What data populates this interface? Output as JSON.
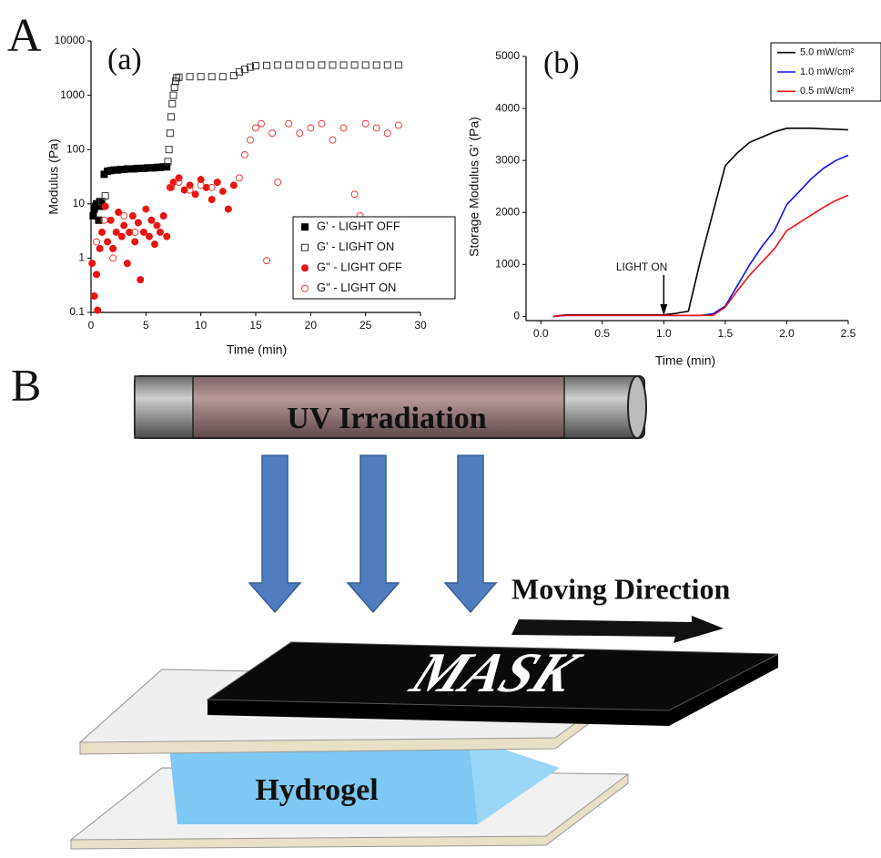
{
  "chart_data": [
    {
      "type": "scatter",
      "title": "(a)",
      "x_label": "Time (min)",
      "y_label": "Modulus (Pa)",
      "xlim": [
        0,
        30
      ],
      "xticks": [
        0,
        5,
        10,
        15,
        20,
        25,
        30
      ],
      "ylim": [
        0.1,
        10000
      ],
      "yticks": [
        0.1,
        1,
        10,
        100,
        1000,
        10000
      ],
      "yscale": "log",
      "legend": "lower right",
      "series": [
        {
          "name": "G' - LIGHT OFF",
          "color": "#000000",
          "marker": "square",
          "filled": true,
          "x": [
            0.2,
            0.3,
            0.4,
            0.5,
            0.6,
            0.7,
            0.8,
            0.9,
            1.0,
            1.2,
            1.5,
            1.8,
            2.1,
            2.4,
            2.7,
            3.0,
            3.3,
            3.6,
            3.9,
            4.2,
            4.5,
            4.8,
            5.1,
            5.4,
            5.7,
            6.0,
            6.3,
            6.6,
            6.9
          ],
          "values": [
            6,
            8,
            9,
            10,
            9,
            5,
            11,
            10,
            9,
            35,
            40,
            41,
            42,
            42,
            43,
            43,
            44,
            44,
            44,
            45,
            45,
            45,
            46,
            46,
            46,
            47,
            47,
            48,
            48
          ]
        },
        {
          "name": "G' - LIGHT ON",
          "color": "#333333",
          "marker": "square",
          "filled": false,
          "x": [
            1.0,
            1.3,
            7.0,
            7.1,
            7.2,
            7.3,
            7.4,
            7.5,
            7.6,
            7.7,
            7.8,
            8,
            9,
            10,
            11,
            12,
            13,
            13.5,
            14,
            14.5,
            15,
            16,
            17,
            18,
            19,
            20,
            21,
            22,
            23,
            24,
            25,
            26,
            27,
            28
          ],
          "values": [
            11,
            14,
            60,
            100,
            200,
            400,
            700,
            1000,
            1400,
            1800,
            2100,
            2150,
            2200,
            2200,
            2200,
            2200,
            2300,
            2700,
            3000,
            3300,
            3500,
            3550,
            3600,
            3600,
            3600,
            3600,
            3600,
            3600,
            3600,
            3600,
            3600,
            3600,
            3600,
            3600
          ]
        },
        {
          "name": "G\" - LIGHT OFF",
          "color": "#e8130f",
          "marker": "circle",
          "filled": true,
          "x": [
            0.1,
            0.3,
            0.5,
            0.6,
            0.8,
            1.0,
            1.3,
            1.5,
            1.8,
            2.0,
            2.3,
            2.5,
            2.8,
            3.0,
            3.3,
            3.5,
            3.8,
            4.0,
            4.3,
            4.5,
            4.8,
            5.0,
            5.3,
            5.5,
            5.8,
            6.0,
            6.3,
            6.6,
            6.9,
            7.2,
            7.5,
            8.0,
            8.5,
            9.0,
            9.5,
            10.0,
            10.5,
            11.0,
            11.5,
            12.0,
            12.5,
            13.0
          ],
          "values": [
            0.8,
            0.2,
            0.5,
            0.11,
            1.5,
            3,
            9,
            2,
            5,
            1.5,
            3,
            7,
            2.5,
            4,
            0.8,
            3,
            6,
            2,
            4.5,
            0.4,
            3,
            8,
            2.5,
            5,
            1.8,
            4,
            3,
            6,
            2.5,
            20,
            25,
            30,
            18,
            22,
            15,
            28,
            20,
            12,
            25,
            17,
            8,
            22
          ]
        },
        {
          "name": "G\" - LIGHT ON",
          "color": "#e8403c",
          "marker": "circle",
          "filled": false,
          "x": [
            0.5,
            1.2,
            2,
            3,
            4,
            5,
            6,
            7.3,
            8,
            9,
            10,
            11,
            12,
            13.5,
            14,
            14.5,
            15,
            15.5,
            16,
            16.5,
            17,
            18,
            19,
            20,
            21,
            22,
            23,
            24,
            24.5,
            25,
            26,
            27,
            28
          ],
          "values": [
            2,
            5,
            1,
            6,
            3,
            8,
            4,
            20,
            25,
            18,
            22,
            20,
            17,
            30,
            80,
            150,
            250,
            300,
            0.9,
            200,
            25,
            300,
            200,
            250,
            300,
            150,
            250,
            15,
            6,
            300,
            250,
            200,
            280
          ]
        }
      ]
    },
    {
      "type": "line",
      "title": "(b)",
      "x_label": "Time (min)",
      "y_label": "Storage Modulus G' (Pa)",
      "xlim": [
        -0.12,
        2.5
      ],
      "xticks": [
        {
          "value": 0,
          "label": "0.0"
        },
        0.5,
        {
          "value": 1,
          "label": "1.0"
        },
        1.5,
        {
          "value": 2,
          "label": "2.0"
        },
        2.5
      ],
      "ylim": [
        -80,
        5000
      ],
      "yticks": [
        0,
        1000,
        2000,
        3000,
        4000,
        5000
      ],
      "legend": "upper right",
      "annotation": {
        "text": "LIGHT ON",
        "x": 1.0
      },
      "x": [
        0.1,
        0.2,
        0.3,
        0.4,
        0.5,
        0.6,
        0.7,
        0.8,
        0.9,
        1.0,
        1.1,
        1.2,
        1.3,
        1.4,
        1.5,
        1.6,
        1.7,
        1.8,
        1.9,
        2.0,
        2.1,
        2.2,
        2.3,
        2.4,
        2.5
      ],
      "series": [
        {
          "name": "5.0 mW/cm²",
          "color": "#000000",
          "values": [
            0,
            30,
            30,
            30,
            30,
            30,
            30,
            30,
            30,
            30,
            60,
            100,
            1100,
            2000,
            2900,
            3150,
            3350,
            3450,
            3550,
            3620,
            3620,
            3620,
            3610,
            3600,
            3590
          ]
        },
        {
          "name": "1.0 mW/cm²",
          "color": "#1010f0",
          "values": [
            0,
            20,
            20,
            20,
            20,
            20,
            20,
            20,
            20,
            20,
            20,
            20,
            20,
            50,
            200,
            600,
            1000,
            1350,
            1650,
            2150,
            2400,
            2650,
            2850,
            3000,
            3100
          ]
        },
        {
          "name": "0.5 mW/cm²",
          "color": "#f01010",
          "values": [
            0,
            20,
            20,
            20,
            20,
            20,
            20,
            20,
            20,
            20,
            20,
            20,
            20,
            20,
            180,
            500,
            800,
            1050,
            1300,
            1650,
            1800,
            1950,
            2100,
            2230,
            2330
          ]
        }
      ]
    }
  ],
  "figure": {
    "label_a": "A",
    "label_b": "B"
  },
  "diagram": {
    "lamp": "UV Irradiation",
    "direction": "Moving Direction",
    "mask": "MASK",
    "gel": "Hydrogel"
  }
}
